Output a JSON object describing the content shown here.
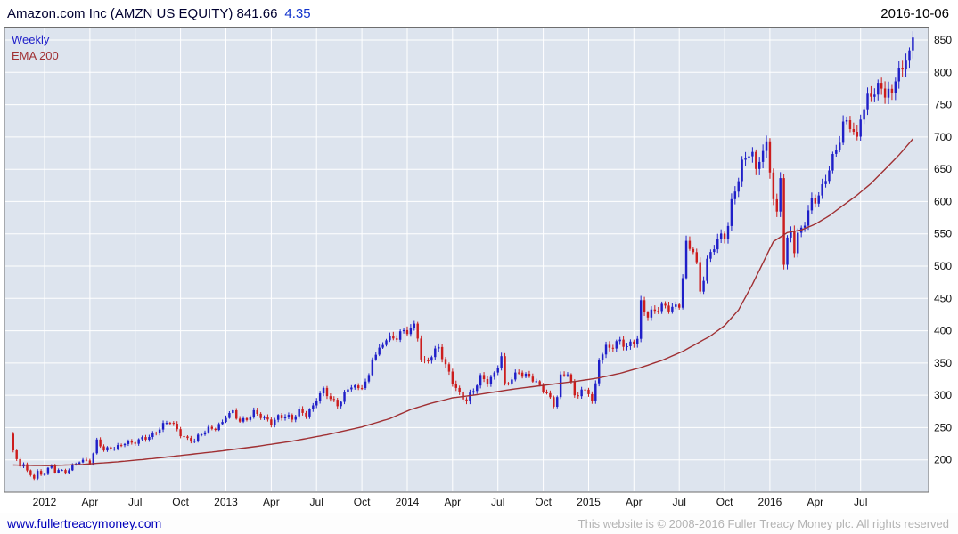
{
  "header": {
    "title": "Amazon.com Inc (AMZN US EQUITY) 841.66",
    "change": "4.35",
    "date": "2016-10-06"
  },
  "legend": {
    "series1": "Weekly",
    "series2": "EMA 200"
  },
  "footer": {
    "site_link": "www.fullertreacymoney.com",
    "copyright": "This website is © 2008-2016 Fuller Treacy Money plc. All rights reserved"
  },
  "chart_data": {
    "type": "candlestick",
    "title": "Amazon.com Inc (AMZN US EQUITY)",
    "interval": "Weekly",
    "overlay": "EMA 200",
    "last_price": 841.66,
    "change": 4.35,
    "date": "2016-10-06",
    "ylim": [
      150,
      870
    ],
    "y_ticks": [
      200,
      250,
      300,
      350,
      400,
      450,
      500,
      550,
      600,
      650,
      700,
      750,
      800,
      850
    ],
    "x_ticks": [
      [
        9,
        "2012"
      ],
      [
        22,
        "Apr"
      ],
      [
        35,
        "Jul"
      ],
      [
        48,
        "Oct"
      ],
      [
        61,
        "2013"
      ],
      [
        74,
        "Apr"
      ],
      [
        87,
        "Jul"
      ],
      [
        100,
        "Oct"
      ],
      [
        113,
        "2014"
      ],
      [
        126,
        "Apr"
      ],
      [
        139,
        "Jul"
      ],
      [
        152,
        "Oct"
      ],
      [
        165,
        "2015"
      ],
      [
        178,
        "Apr"
      ],
      [
        191,
        "Jul"
      ],
      [
        204,
        "Oct"
      ],
      [
        217,
        "2016"
      ],
      [
        230,
        "Apr"
      ],
      [
        243,
        "Jul"
      ]
    ],
    "data_weeks": 259,
    "total_weeks": 265,
    "lead_weeks": 2,
    "price_anchors": [
      [
        0,
        213
      ],
      [
        1,
        198
      ],
      [
        2,
        192
      ],
      [
        3,
        196
      ],
      [
        4,
        183
      ],
      [
        5,
        178
      ],
      [
        6,
        173
      ],
      [
        7,
        180
      ],
      [
        8,
        175
      ],
      [
        9,
        179
      ],
      [
        10,
        186
      ],
      [
        11,
        190
      ],
      [
        12,
        184
      ],
      [
        13,
        186
      ],
      [
        15,
        180
      ],
      [
        17,
        188
      ],
      [
        19,
        198
      ],
      [
        21,
        200
      ],
      [
        22,
        197
      ],
      [
        23,
        210
      ],
      [
        24,
        229
      ],
      [
        25,
        222
      ],
      [
        26,
        213
      ],
      [
        28,
        218
      ],
      [
        30,
        222
      ],
      [
        32,
        228
      ],
      [
        34,
        224
      ],
      [
        35,
        226
      ],
      [
        37,
        233
      ],
      [
        39,
        238
      ],
      [
        41,
        244
      ],
      [
        43,
        252
      ],
      [
        45,
        259
      ],
      [
        46,
        254
      ],
      [
        48,
        242
      ],
      [
        50,
        232
      ],
      [
        52,
        228
      ],
      [
        54,
        240
      ],
      [
        56,
        250
      ],
      [
        58,
        251
      ],
      [
        60,
        256
      ],
      [
        61,
        266
      ],
      [
        63,
        273
      ],
      [
        65,
        262
      ],
      [
        67,
        265
      ],
      [
        69,
        272
      ],
      [
        71,
        266
      ],
      [
        73,
        262
      ],
      [
        74,
        259
      ],
      [
        76,
        268
      ],
      [
        78,
        266
      ],
      [
        80,
        262
      ],
      [
        82,
        277
      ],
      [
        84,
        273
      ],
      [
        86,
        282
      ],
      [
        87,
        293
      ],
      [
        89,
        306
      ],
      [
        91,
        297
      ],
      [
        93,
        287
      ],
      [
        95,
        300
      ],
      [
        97,
        313
      ],
      [
        99,
        309
      ],
      [
        100,
        317
      ],
      [
        102,
        330
      ],
      [
        103,
        360
      ],
      [
        105,
        366
      ],
      [
        107,
        387
      ],
      [
        109,
        390
      ],
      [
        111,
        399
      ],
      [
        113,
        398
      ],
      [
        115,
        403
      ],
      [
        116,
        390
      ],
      [
        117,
        358
      ],
      [
        118,
        352
      ],
      [
        120,
        365
      ],
      [
        122,
        372
      ],
      [
        124,
        343
      ],
      [
        126,
        323
      ],
      [
        128,
        304
      ],
      [
        130,
        292
      ],
      [
        132,
        305
      ],
      [
        134,
        327
      ],
      [
        136,
        324
      ],
      [
        138,
        334
      ],
      [
        139,
        346
      ],
      [
        140,
        358
      ],
      [
        141,
        312
      ],
      [
        143,
        326
      ],
      [
        145,
        339
      ],
      [
        147,
        331
      ],
      [
        149,
        323
      ],
      [
        151,
        311
      ],
      [
        153,
        305
      ],
      [
        155,
        287
      ],
      [
        156,
        300
      ],
      [
        157,
        327
      ],
      [
        159,
        333
      ],
      [
        161,
        299
      ],
      [
        163,
        310
      ],
      [
        165,
        306
      ],
      [
        166,
        290
      ],
      [
        167,
        312
      ],
      [
        168,
        354
      ],
      [
        170,
        374
      ],
      [
        172,
        380
      ],
      [
        174,
        385
      ],
      [
        176,
        371
      ],
      [
        178,
        382
      ],
      [
        179,
        389
      ],
      [
        180,
        445
      ],
      [
        182,
        426
      ],
      [
        184,
        429
      ],
      [
        186,
        434
      ],
      [
        188,
        437
      ],
      [
        190,
        440
      ],
      [
        191,
        443
      ],
      [
        192,
        482
      ],
      [
        193,
        529
      ],
      [
        195,
        522
      ],
      [
        196,
        499
      ],
      [
        197,
        463
      ],
      [
        199,
        511
      ],
      [
        201,
        532
      ],
      [
        203,
        540
      ],
      [
        204,
        544
      ],
      [
        205,
        563
      ],
      [
        206,
        599
      ],
      [
        207,
        625
      ],
      [
        209,
        659
      ],
      [
        211,
        673
      ],
      [
        212,
        665
      ],
      [
        213,
        643
      ],
      [
        214,
        670
      ],
      [
        215,
        680
      ],
      [
        216,
        692
      ],
      [
        217,
        657
      ],
      [
        218,
        607
      ],
      [
        219,
        575
      ],
      [
        220,
        635
      ],
      [
        221,
        502
      ],
      [
        222,
        535
      ],
      [
        223,
        555
      ],
      [
        224,
        530
      ],
      [
        225,
        552
      ],
      [
        226,
        560
      ],
      [
        228,
        582
      ],
      [
        229,
        594
      ],
      [
        230,
        598
      ],
      [
        232,
        620
      ],
      [
        234,
        660
      ],
      [
        236,
        680
      ],
      [
        238,
        712
      ],
      [
        240,
        719
      ],
      [
        242,
        698
      ],
      [
        243,
        741
      ],
      [
        245,
        757
      ],
      [
        247,
        766
      ],
      [
        249,
        772
      ],
      [
        251,
        775
      ],
      [
        252,
        769
      ],
      [
        253,
        800
      ],
      [
        254,
        805
      ],
      [
        255,
        790
      ],
      [
        256,
        820
      ],
      [
        257,
        832
      ],
      [
        258,
        841.66
      ]
    ],
    "ema_anchors": [
      [
        0,
        192
      ],
      [
        10,
        191
      ],
      [
        20,
        193
      ],
      [
        30,
        197
      ],
      [
        40,
        202
      ],
      [
        50,
        208
      ],
      [
        60,
        214
      ],
      [
        70,
        221
      ],
      [
        80,
        229
      ],
      [
        90,
        239
      ],
      [
        100,
        251
      ],
      [
        108,
        264
      ],
      [
        114,
        278
      ],
      [
        120,
        288
      ],
      [
        126,
        296
      ],
      [
        132,
        300
      ],
      [
        138,
        305
      ],
      [
        144,
        310
      ],
      [
        150,
        314
      ],
      [
        156,
        318
      ],
      [
        162,
        322
      ],
      [
        168,
        327
      ],
      [
        174,
        334
      ],
      [
        180,
        343
      ],
      [
        186,
        354
      ],
      [
        192,
        368
      ],
      [
        196,
        380
      ],
      [
        200,
        392
      ],
      [
        204,
        408
      ],
      [
        208,
        432
      ],
      [
        212,
        472
      ],
      [
        215,
        505
      ],
      [
        218,
        538
      ],
      [
        222,
        552
      ],
      [
        226,
        556
      ],
      [
        230,
        565
      ],
      [
        234,
        578
      ],
      [
        238,
        594
      ],
      [
        242,
        610
      ],
      [
        246,
        628
      ],
      [
        250,
        650
      ],
      [
        254,
        672
      ],
      [
        258,
        697
      ]
    ],
    "colors": {
      "up": "#1f1fc8",
      "down": "#cc1d1d",
      "ema": "#a03033",
      "plot_bg": "#dde4ee",
      "grid": "#ffffff",
      "axis_text": "#141414",
      "plot_border": "#6e6e6e"
    },
    "render_hints": {
      "close_wave": [
        0.013,
        1.93,
        0.009,
        0.71,
        2.0
      ],
      "wick": [
        0.005,
        0.01,
        2.43,
        0.7,
        3.07,
        1.3
      ],
      "candle_width_frac": 0.62,
      "first_open_factor": 1.12
    }
  }
}
